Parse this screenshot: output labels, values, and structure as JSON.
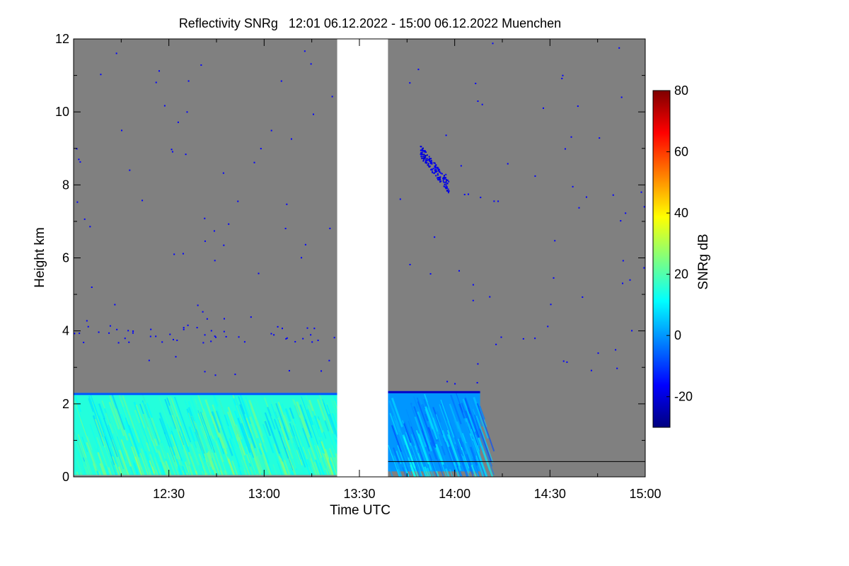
{
  "chart_data": {
    "type": "heatmap",
    "title": "Reflectivity SNRg   12:01 06.12.2022 - 15:00 06.12.2022 Muenchen",
    "xlabel": "Time UTC",
    "ylabel": "Height km",
    "colorbar_label": "SNRg dB",
    "xlim_minutes": [
      720,
      900
    ],
    "ylim": [
      0,
      12
    ],
    "x_ticks": [
      {
        "value": 750,
        "label": "12:30"
      },
      {
        "value": 780,
        "label": "13:00"
      },
      {
        "value": 810,
        "label": "13:30"
      },
      {
        "value": 840,
        "label": "14:00"
      },
      {
        "value": 870,
        "label": "14:30"
      },
      {
        "value": 900,
        "label": "15:00"
      }
    ],
    "y_ticks": [
      {
        "value": 0,
        "label": "0"
      },
      {
        "value": 2,
        "label": "2"
      },
      {
        "value": 4,
        "label": "4"
      },
      {
        "value": 6,
        "label": "6"
      },
      {
        "value": 8,
        "label": "8"
      },
      {
        "value": 10,
        "label": "10"
      },
      {
        "value": 12,
        "label": "12"
      }
    ],
    "colorbar": {
      "range": [
        -30,
        80
      ],
      "ticks": [
        {
          "value": -20,
          "label": "-20"
        },
        {
          "value": 0,
          "label": "0"
        },
        {
          "value": 20,
          "label": "20"
        },
        {
          "value": 40,
          "label": "40"
        },
        {
          "value": 60,
          "label": "60"
        },
        {
          "value": 80,
          "label": "80"
        }
      ]
    },
    "colors": {
      "no_signal": "#808080",
      "data_gap": "#ffffff",
      "colormap": [
        "#00007f",
        "#0000ff",
        "#007fff",
        "#00ffff",
        "#7fff7f",
        "#ffff00",
        "#ff7f00",
        "#ff0000",
        "#7f0000"
      ]
    },
    "data_gap_minutes": [
      803,
      819
    ],
    "regions": [
      {
        "name": "boundary layer echo (before gap)",
        "t_start": 720,
        "t_end": 803,
        "h_bottom": 0.05,
        "h_top": 2.3,
        "snr_db": [
          5,
          25
        ]
      },
      {
        "name": "boundary layer echo (after gap)",
        "t_start": 819,
        "t_end": 848,
        "h_bottom": 0.15,
        "h_top": 2.35,
        "snr_db": [
          -10,
          10
        ]
      },
      {
        "name": "upper cloud fragment",
        "t_start": 829,
        "t_end": 838,
        "h_bottom": 7.95,
        "h_top": 8.95,
        "snr_db": [
          -25,
          -15
        ]
      },
      {
        "name": "low noise speckle band",
        "t_start": 720,
        "t_end": 808,
        "h_bottom": 3.7,
        "h_top": 4.2,
        "snr_db": [
          -25,
          -20
        ]
      }
    ],
    "grid": false
  }
}
